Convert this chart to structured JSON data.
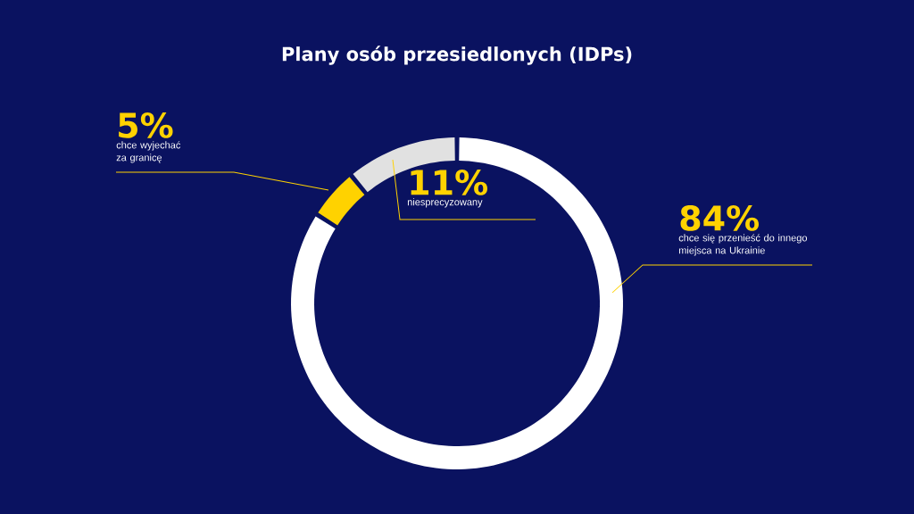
{
  "chart_data": {
    "type": "donut",
    "title": "Plany osób przesiedlonych (IDPs)",
    "categories": [
      "chce się przenieść do innego miejsca na Ukrainie",
      "chce wyjechać za granicę",
      "niesprecyzowany"
    ],
    "values": [
      84,
      5,
      11
    ],
    "colors": [
      "#ffffff",
      "#ffd200",
      "#e1e1e1"
    ],
    "value_labels": [
      "84%",
      "5%",
      "11%"
    ]
  }
}
